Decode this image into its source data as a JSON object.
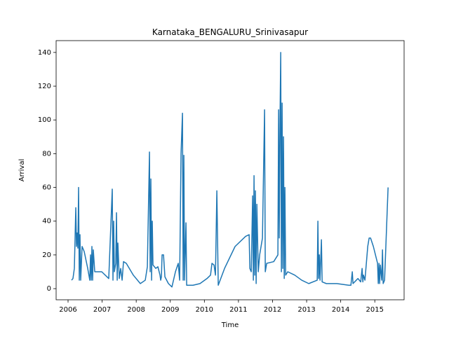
{
  "chart_data": {
    "type": "line",
    "title": "Karnataka_BENGALURU_Srinivasapur",
    "x_label": "Time",
    "y_label": "Arrival",
    "xlim": [
      2005.65,
      2015.86
    ],
    "ylim": [
      -6.6,
      147
    ],
    "xticks": [
      2006,
      2007,
      2008,
      2009,
      2010,
      2011,
      2012,
      2013,
      2014,
      2015
    ],
    "yticks": [
      0,
      20,
      40,
      60,
      80,
      100,
      120,
      140
    ],
    "series": [
      {
        "color": "#1f77b4",
        "x": [
          2006.103,
          2006.144,
          2006.185,
          2006.227,
          2006.247,
          2006.268,
          2006.288,
          2006.309,
          2006.329,
          2006.35,
          2006.371,
          2006.412,
          2006.474,
          2006.577,
          2006.638,
          2006.659,
          2006.68,
          2006.7,
          2006.721,
          2006.741,
          2006.783,
          2006.988,
          2007.194,
          2007.297,
          2007.318,
          2007.339,
          2007.359,
          2007.4,
          2007.421,
          2007.442,
          2007.462,
          2007.503,
          2007.544,
          2007.586,
          2007.627,
          2007.709,
          2007.915,
          2008.121,
          2008.265,
          2008.327,
          2008.389,
          2008.409,
          2008.43,
          2008.451,
          2008.471,
          2008.492,
          2008.574,
          2008.636,
          2008.698,
          2008.718,
          2008.739,
          2008.759,
          2008.801,
          2008.842,
          2008.945,
          2009.048,
          2009.151,
          2009.233,
          2009.274,
          2009.315,
          2009.357,
          2009.377,
          2009.398,
          2009.418,
          2009.46,
          2009.48,
          2009.666,
          2009.871,
          2010.077,
          2010.18,
          2010.222,
          2010.283,
          2010.325,
          2010.366,
          2010.407,
          2010.592,
          2010.901,
          2011.21,
          2011.313,
          2011.334,
          2011.375,
          2011.416,
          2011.437,
          2011.457,
          2011.478,
          2011.498,
          2011.519,
          2011.54,
          2011.581,
          2011.622,
          2011.704,
          2011.766,
          2011.787,
          2011.828,
          2012.034,
          2012.157,
          2012.178,
          2012.198,
          2012.219,
          2012.24,
          2012.26,
          2012.281,
          2012.301,
          2012.322,
          2012.343,
          2012.363,
          2012.384,
          2012.446,
          2012.652,
          2012.857,
          2013.063,
          2013.31,
          2013.331,
          2013.352,
          2013.372,
          2013.393,
          2013.434,
          2013.455,
          2013.578,
          2013.887,
          2014.237,
          2014.299,
          2014.34,
          2014.361,
          2014.505,
          2014.587,
          2014.628,
          2014.649,
          2014.669,
          2014.711,
          2014.793,
          2014.834,
          2014.876,
          2014.958,
          2015.081,
          2015.102,
          2015.123,
          2015.143,
          2015.164,
          2015.205,
          2015.226,
          2015.246,
          2015.287,
          2015.39
        ],
        "values": [
          5,
          6,
          12,
          48,
          25,
          33,
          24,
          60,
          5,
          32,
          5,
          25,
          22,
          12,
          5,
          20,
          5,
          25,
          5,
          23,
          10,
          10,
          6,
          59,
          5,
          40,
          10,
          15,
          45,
          5,
          27,
          6,
          12,
          5,
          16,
          15,
          8,
          3,
          5,
          13,
          81,
          10,
          65,
          5,
          40,
          14,
          12,
          13,
          8,
          5,
          7,
          20,
          20,
          7,
          3,
          1,
          10,
          15,
          5,
          80,
          104,
          5,
          79,
          5,
          39,
          2,
          2,
          3,
          6,
          8,
          15,
          14,
          8,
          58,
          2,
          12,
          25,
          31,
          32,
          12,
          10,
          55,
          5,
          67,
          8,
          58,
          3,
          50,
          10,
          20,
          30,
          106,
          10,
          15,
          16,
          20,
          106,
          30,
          100,
          140,
          10,
          110,
          12,
          90,
          6,
          60,
          8,
          10,
          8,
          5,
          3,
          5,
          40,
          6,
          20,
          5,
          29,
          4,
          3,
          3,
          2,
          2,
          10,
          3,
          6,
          4,
          12,
          4,
          8,
          5,
          25,
          30,
          30,
          25,
          15,
          3,
          15,
          3,
          14,
          5,
          23,
          3,
          5,
          60
        ]
      }
    ]
  }
}
